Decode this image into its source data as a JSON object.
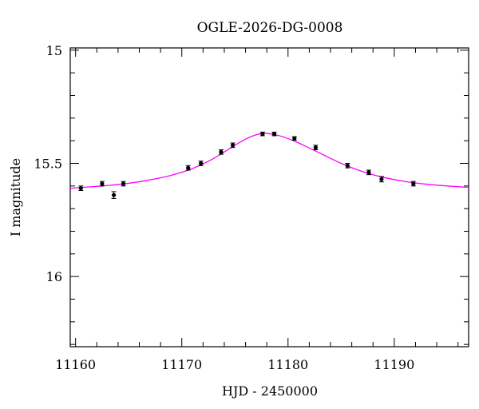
{
  "chart_data": {
    "type": "scatter",
    "title": "OGLE-2026-DG-0008",
    "xlabel": "HJD - 2450000",
    "ylabel": "I magnitude",
    "xlim": [
      11159.5,
      11197
    ],
    "ylim": [
      16.31,
      14.99
    ],
    "y_inverted": true,
    "x_ticks": [
      11160,
      11170,
      11180,
      11190
    ],
    "y_ticks": [
      15,
      15.5,
      16
    ],
    "x_minor_step": 2,
    "y_minor_step": 0.1,
    "grid": false,
    "colors": {
      "points": "#000000",
      "model": "#ff00ff"
    },
    "series": [
      {
        "kind": "points",
        "x": [
          11160.5,
          11162.5,
          11163.6,
          11164.5,
          11170.6,
          11171.8,
          11173.7,
          11174.8,
          11177.6,
          11178.7,
          11180.6,
          11182.6,
          11185.6,
          11187.6,
          11188.8,
          11191.8
        ],
        "y": [
          15.61,
          15.59,
          15.64,
          15.59,
          15.52,
          15.5,
          15.45,
          15.42,
          15.37,
          15.37,
          15.39,
          15.43,
          15.51,
          15.54,
          15.57,
          15.59
        ],
        "err": [
          0.01,
          0.01,
          0.015,
          0.01,
          0.01,
          0.01,
          0.01,
          0.01,
          0.008,
          0.008,
          0.008,
          0.01,
          0.01,
          0.01,
          0.012,
          0.01
        ]
      },
      {
        "kind": "model",
        "x": [
          11159.5,
          11161,
          11163,
          11165,
          11167,
          11169,
          11171,
          11173,
          11175,
          11176,
          11177,
          11177.8,
          11178.6,
          11179.5,
          11181,
          11183,
          11185,
          11187,
          11189,
          11191,
          11193,
          11195,
          11197
        ],
        "y": [
          15.61,
          15.605,
          15.598,
          15.588,
          15.573,
          15.553,
          15.523,
          15.478,
          15.42,
          15.393,
          15.374,
          15.367,
          15.372,
          15.382,
          15.41,
          15.455,
          15.5,
          15.536,
          15.562,
          15.58,
          15.592,
          15.6,
          15.606
        ]
      }
    ]
  }
}
